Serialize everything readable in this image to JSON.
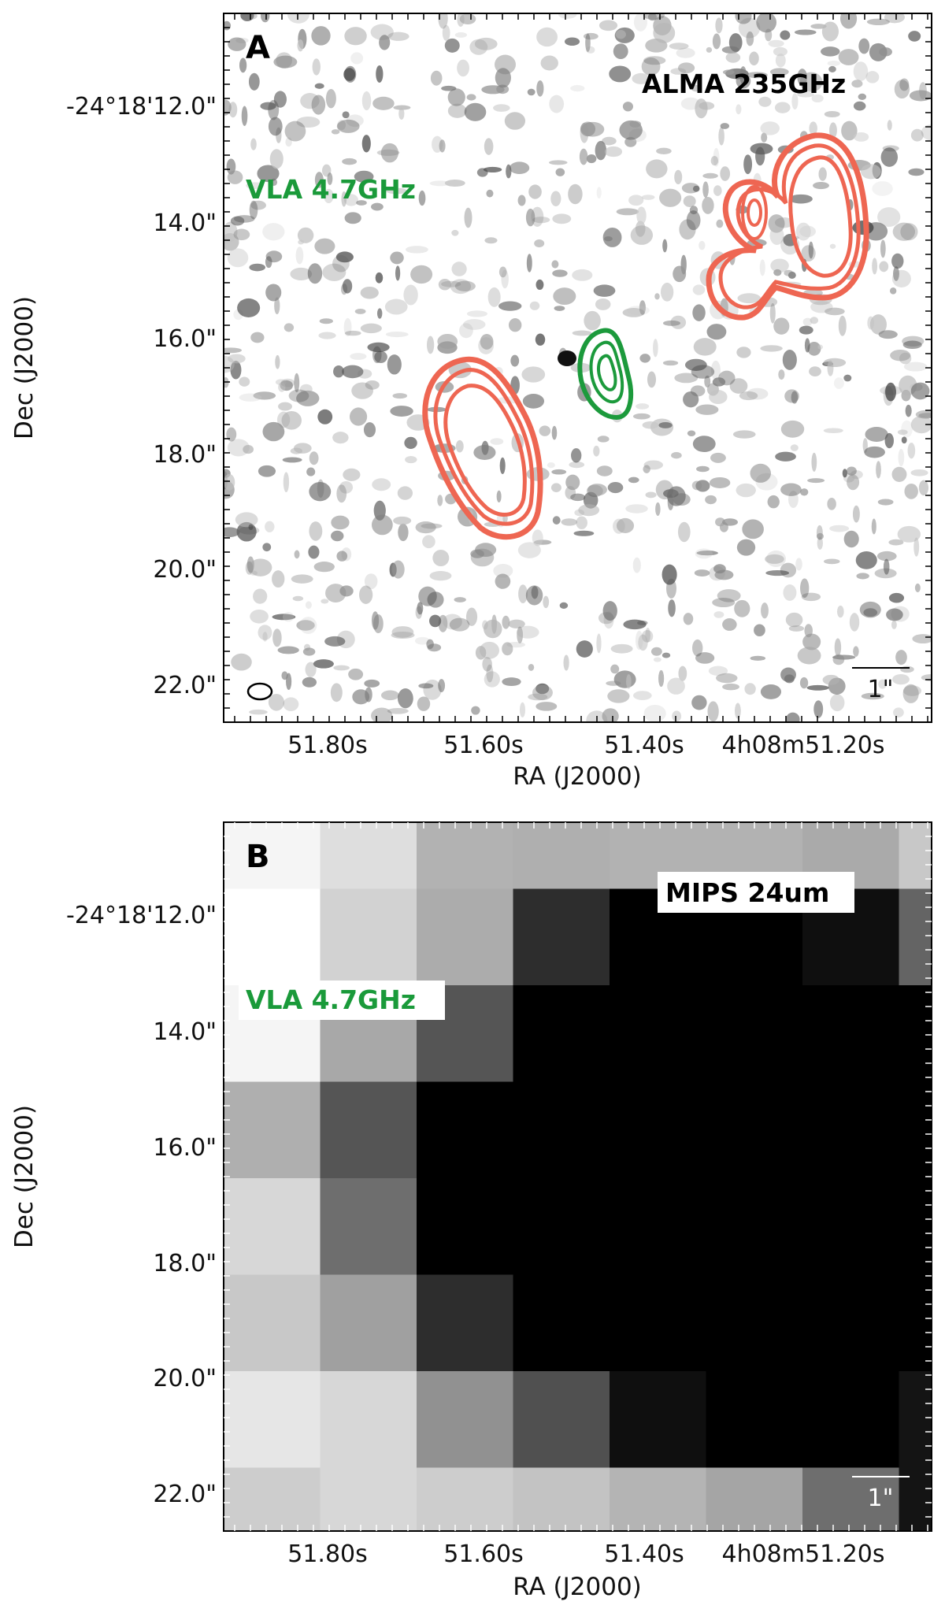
{
  "colors": {
    "alma_contour": "#ee6652",
    "vla_contour": "#1c9a3c",
    "frame": "#000000"
  },
  "axes": {
    "x_title": "RA (J2000)",
    "y_title": "Dec (J2000)",
    "x_ticks": [
      "51.80s",
      "51.60s",
      "51.40s",
      "4h08m51.20s"
    ],
    "y_ticks": [
      "-24°18'12.0\"",
      "14.0\"",
      "16.0\"",
      "18.0\"",
      "20.0\"",
      "22.0\""
    ]
  },
  "panels": [
    {
      "letter": "A",
      "band_label": "ALMA 235GHz",
      "vla_label": "VLA 4.7GHz",
      "scalebar_label": "1\"",
      "background": "noise-map"
    },
    {
      "letter": "B",
      "band_label": "MIPS 24um",
      "vla_label": "VLA 4.7GHz",
      "scalebar_label": "1\"",
      "background": "pixel-map",
      "pixel_gray": [
        [
          245,
          222,
          178,
          175,
          178,
          178,
          170,
          200
        ],
        [
          255,
          210,
          172,
          45,
          0,
          0,
          15,
          100
        ],
        [
          245,
          168,
          85,
          0,
          0,
          0,
          0,
          0
        ],
        [
          175,
          85,
          0,
          0,
          0,
          0,
          0,
          0
        ],
        [
          215,
          110,
          0,
          0,
          0,
          0,
          0,
          0
        ],
        [
          200,
          160,
          45,
          0,
          0,
          0,
          0,
          0
        ],
        [
          230,
          215,
          145,
          80,
          15,
          0,
          0,
          20
        ],
        [
          205,
          215,
          205,
          195,
          180,
          165,
          110,
          20
        ]
      ]
    }
  ]
}
